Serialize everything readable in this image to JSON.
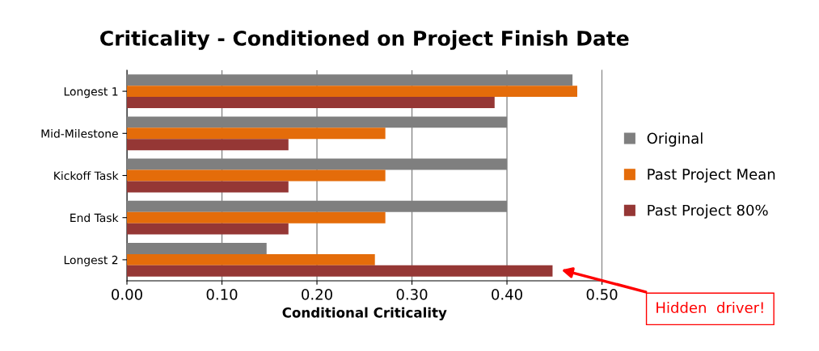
{
  "chart_data": {
    "type": "bar",
    "orientation": "horizontal",
    "title": "Criticality - Conditioned on Project Finish Date",
    "xlabel": "Conditional Criticality",
    "categories": [
      "Longest 1",
      "Mid-Milestone",
      "Kickoff Task",
      "End Task",
      "Longest 2"
    ],
    "series": [
      {
        "name": "Original",
        "color": "#7f7f7f",
        "values": [
          0.469,
          0.4,
          0.4,
          0.4,
          0.147
        ]
      },
      {
        "name": "Past Project Mean",
        "color": "#e46c0a",
        "values": [
          0.474,
          0.272,
          0.272,
          0.272,
          0.261
        ]
      },
      {
        "name": "Past Project 80%",
        "color": "#953735",
        "values": [
          0.387,
          0.17,
          0.17,
          0.17,
          0.448
        ]
      }
    ],
    "xlim": [
      0,
      0.5
    ],
    "xticks": [
      {
        "value": 0,
        "label": "0.00"
      },
      {
        "value": 0.1,
        "label": "0.10"
      },
      {
        "value": 0.2,
        "label": "0.20"
      },
      {
        "value": 0.3,
        "label": "0.30"
      },
      {
        "value": 0.4,
        "label": "0.40"
      },
      {
        "value": 0.5,
        "label": "0.50"
      }
    ],
    "grid": "x",
    "legend": "right",
    "annotations": [
      "Hidden  driver!"
    ]
  }
}
